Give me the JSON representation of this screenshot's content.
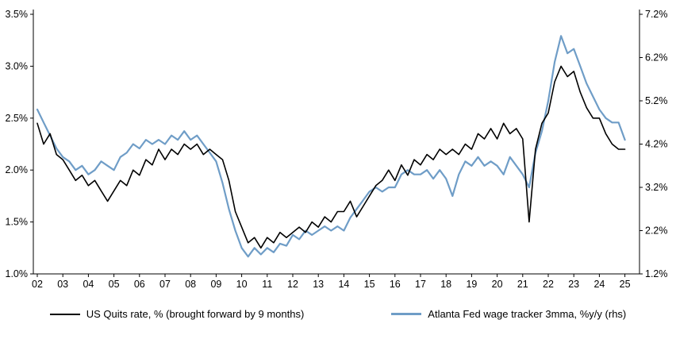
{
  "chart_data": {
    "type": "line",
    "title": "",
    "x_start": 2002,
    "x_step": 0.25,
    "x_tick_labels": [
      "02",
      "03",
      "04",
      "05",
      "06",
      "07",
      "08",
      "09",
      "10",
      "11",
      "12",
      "13",
      "14",
      "15",
      "16",
      "17",
      "18",
      "19",
      "20",
      "21",
      "22",
      "23",
      "24",
      "25"
    ],
    "axes": {
      "left": {
        "min": 1.0,
        "max": 3.5,
        "tick_values": [
          1.0,
          1.5,
          2.0,
          2.5,
          3.0,
          3.5
        ],
        "tick_labels": [
          "1.0%",
          "1.5%",
          "2.0%",
          "2.5%",
          "3.0%",
          "3.5%"
        ]
      },
      "right": {
        "min": 1.2,
        "max": 7.2,
        "tick_values": [
          1.2,
          2.2,
          3.2,
          4.2,
          5.2,
          6.2,
          7.2
        ],
        "tick_labels": [
          "1.2%",
          "2.2%",
          "3.2%",
          "4.2%",
          "5.2%",
          "6.2%",
          "7.2%"
        ]
      }
    },
    "grid": false,
    "legend_position": "bottom",
    "series": [
      {
        "name": "US Quits rate, % (brought forward by 9 months)",
        "color": "#000000",
        "axis": "left",
        "line_width": 1.6,
        "values": [
          2.45,
          2.25,
          2.35,
          2.15,
          2.1,
          2.0,
          1.9,
          1.95,
          1.85,
          1.9,
          1.8,
          1.7,
          1.8,
          1.9,
          1.85,
          2.0,
          1.95,
          2.1,
          2.05,
          2.2,
          2.1,
          2.2,
          2.15,
          2.25,
          2.2,
          2.25,
          2.15,
          2.2,
          2.15,
          2.1,
          1.9,
          1.6,
          1.45,
          1.3,
          1.35,
          1.25,
          1.35,
          1.3,
          1.4,
          1.35,
          1.4,
          1.45,
          1.4,
          1.5,
          1.45,
          1.55,
          1.5,
          1.6,
          1.6,
          1.7,
          1.55,
          1.65,
          1.75,
          1.85,
          1.9,
          2.0,
          1.9,
          2.05,
          1.95,
          2.1,
          2.05,
          2.15,
          2.1,
          2.2,
          2.15,
          2.2,
          2.15,
          2.25,
          2.2,
          2.35,
          2.3,
          2.4,
          2.3,
          2.45,
          2.35,
          2.4,
          2.3,
          1.5,
          2.2,
          2.45,
          2.55,
          2.85,
          3.0,
          2.9,
          2.95,
          2.75,
          2.6,
          2.5,
          2.5,
          2.35,
          2.25,
          2.2,
          2.2
        ]
      },
      {
        "name": "Atlanta Fed wage tracker 3mma, %y/y (rhs)",
        "color": "#6f9dc7",
        "axis": "right",
        "line_width": 2.2,
        "values": [
          5.0,
          4.7,
          4.4,
          4.1,
          3.9,
          3.8,
          3.6,
          3.7,
          3.5,
          3.6,
          3.8,
          3.7,
          3.6,
          3.9,
          4.0,
          4.2,
          4.1,
          4.3,
          4.2,
          4.3,
          4.2,
          4.4,
          4.3,
          4.5,
          4.3,
          4.4,
          4.2,
          4.0,
          3.8,
          3.3,
          2.7,
          2.2,
          1.8,
          1.6,
          1.8,
          1.65,
          1.8,
          1.7,
          1.9,
          1.85,
          2.1,
          2.0,
          2.2,
          2.1,
          2.2,
          2.3,
          2.2,
          2.3,
          2.2,
          2.5,
          2.7,
          2.9,
          3.1,
          3.2,
          3.1,
          3.2,
          3.2,
          3.5,
          3.6,
          3.5,
          3.5,
          3.6,
          3.4,
          3.6,
          3.4,
          3.0,
          3.5,
          3.8,
          3.7,
          3.9,
          3.7,
          3.8,
          3.7,
          3.5,
          3.9,
          3.7,
          3.5,
          3.2,
          4.0,
          4.5,
          5.2,
          6.1,
          6.7,
          6.3,
          6.4,
          6.0,
          5.6,
          5.3,
          5.0,
          4.8,
          4.7,
          4.7,
          4.3
        ]
      }
    ]
  }
}
